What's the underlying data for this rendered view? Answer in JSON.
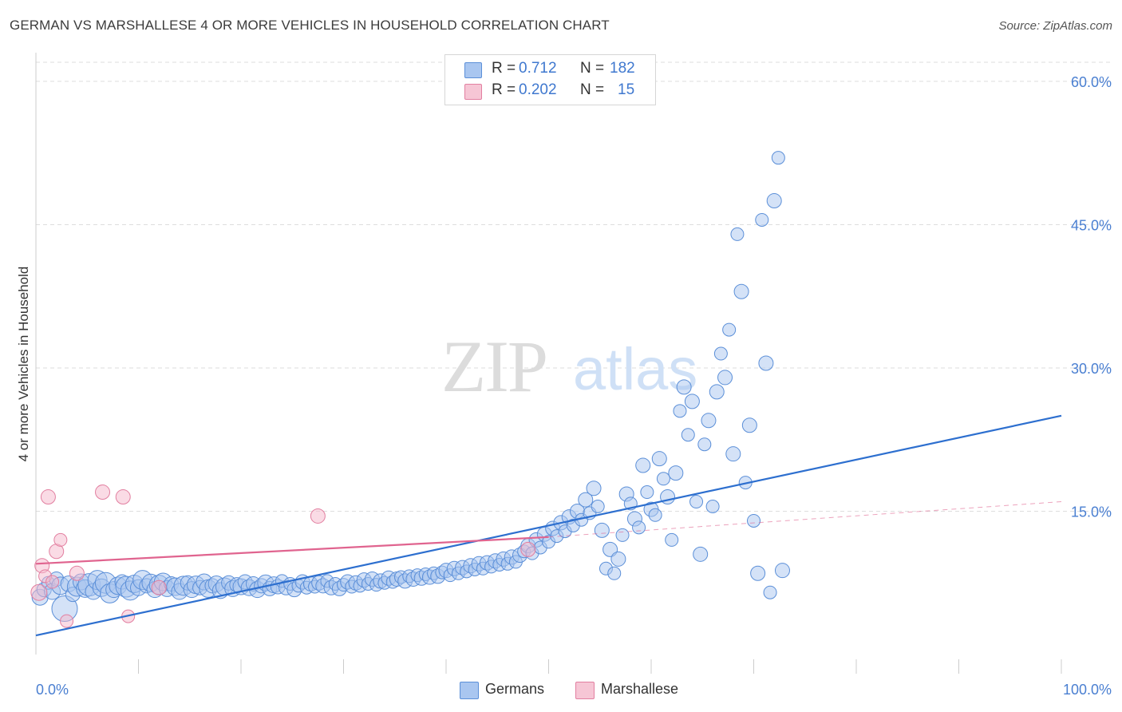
{
  "title": "GERMAN VS MARSHALLESE 4 OR MORE VEHICLES IN HOUSEHOLD CORRELATION CHART",
  "source": "Source: ZipAtlas.com",
  "watermark": {
    "zip": "ZIP",
    "atlas": "atlas"
  },
  "legend": {
    "german": {
      "r_label": "R =",
      "r_value": "0.712",
      "n_label": "N =",
      "n_value": "182"
    },
    "marshallese": {
      "r_label": "R =",
      "r_value": "0.202",
      "n_label": "N =",
      "n_value": "15"
    }
  },
  "bottom_legend": {
    "german": "Germans",
    "marshallese": "Marshallese"
  },
  "colors": {
    "german_fill": "#a9c6f0",
    "german_stroke": "#5b8fd8",
    "german_line": "#2d6fcf",
    "marsh_fill": "#f6b8cb",
    "marsh_stroke": "#e27fa0",
    "marsh_line": "#e0648f",
    "tick_text": "#4a7fd1",
    "grid": "#dddddd"
  },
  "chart_data": {
    "type": "scatter",
    "title": "GERMAN VS MARSHALLESE 4 OR MORE VEHICLES IN HOUSEHOLD CORRELATION CHART",
    "xlabel": "",
    "ylabel": "4 or more Vehicles in Household",
    "xlim": [
      0,
      100
    ],
    "ylim": [
      0,
      62
    ],
    "x_tick_labels": [
      "0.0%",
      "100.0%"
    ],
    "y_ticks": [
      15,
      30,
      45,
      60
    ],
    "y_tick_labels": [
      "15.0%",
      "30.0%",
      "45.0%",
      "60.0%"
    ],
    "grid": true,
    "legend_position": "top-center",
    "series": [
      {
        "name": "Germans",
        "trend": [
          [
            0,
            2.0
          ],
          [
            100,
            25.0
          ]
        ],
        "points": [
          [
            0.4,
            6.0,
            10
          ],
          [
            0.8,
            6.8,
            9
          ],
          [
            1.2,
            7.5,
            8
          ],
          [
            1.6,
            6.6,
            10
          ],
          [
            2.0,
            7.9,
            9
          ],
          [
            2.4,
            7.2,
            11
          ],
          [
            2.8,
            4.8,
            16
          ],
          [
            3.2,
            7.4,
            10
          ],
          [
            3.6,
            6.3,
            9
          ],
          [
            4.0,
            7.1,
            12
          ],
          [
            4.4,
            7.6,
            10
          ],
          [
            4.8,
            6.9,
            11
          ],
          [
            5.2,
            7.3,
            14
          ],
          [
            5.6,
            6.6,
            10
          ],
          [
            6.0,
            7.8,
            12
          ],
          [
            6.4,
            7.0,
            11
          ],
          [
            6.8,
            7.5,
            13
          ],
          [
            7.2,
            6.4,
            12
          ],
          [
            7.6,
            6.8,
            10
          ],
          [
            8.0,
            7.2,
            11
          ],
          [
            8.4,
            7.6,
            9
          ],
          [
            8.8,
            7.1,
            13
          ],
          [
            9.2,
            6.7,
            12
          ],
          [
            9.6,
            7.4,
            11
          ],
          [
            10.0,
            7.0,
            10
          ],
          [
            10.4,
            7.8,
            12
          ],
          [
            10.8,
            7.2,
            9
          ],
          [
            11.2,
            7.5,
            11
          ],
          [
            11.6,
            6.8,
            10
          ],
          [
            12.0,
            7.3,
            12
          ],
          [
            12.4,
            7.6,
            11
          ],
          [
            12.8,
            6.9,
            10
          ],
          [
            13.2,
            7.4,
            9
          ],
          [
            13.6,
            7.1,
            11
          ],
          [
            14.0,
            6.6,
            10
          ],
          [
            14.4,
            7.2,
            12
          ],
          [
            14.8,
            7.5,
            9
          ],
          [
            15.2,
            6.8,
            10
          ],
          [
            15.6,
            7.3,
            11
          ],
          [
            16.0,
            7.0,
            9
          ],
          [
            16.4,
            7.6,
            10
          ],
          [
            16.8,
            6.9,
            11
          ],
          [
            17.2,
            7.2,
            9
          ],
          [
            17.6,
            7.4,
            10
          ],
          [
            18.0,
            6.7,
            10
          ],
          [
            18.4,
            7.1,
            11
          ],
          [
            18.8,
            7.5,
            9
          ],
          [
            19.2,
            6.9,
            10
          ],
          [
            19.6,
            7.3,
            9
          ],
          [
            20.0,
            7.1,
            10
          ],
          [
            20.4,
            7.6,
            9
          ],
          [
            20.8,
            7.0,
            10
          ],
          [
            21.2,
            7.4,
            9
          ],
          [
            21.6,
            6.8,
            10
          ],
          [
            22.0,
            7.2,
            9
          ],
          [
            22.4,
            7.5,
            10
          ],
          [
            22.8,
            6.9,
            9
          ],
          [
            23.2,
            7.3,
            10
          ],
          [
            23.6,
            7.1,
            9
          ],
          [
            24.0,
            7.7,
            8
          ],
          [
            24.4,
            7.0,
            9
          ],
          [
            24.8,
            7.4,
            8
          ],
          [
            25.2,
            6.8,
            9
          ],
          [
            25.6,
            7.2,
            8
          ],
          [
            26.0,
            7.6,
            9
          ],
          [
            26.4,
            7.0,
            8
          ],
          [
            26.8,
            7.4,
            9
          ],
          [
            27.2,
            7.1,
            8
          ],
          [
            27.6,
            7.5,
            9
          ],
          [
            28.0,
            7.2,
            9
          ],
          [
            28.4,
            7.7,
            8
          ],
          [
            28.8,
            7.0,
            9
          ],
          [
            29.2,
            7.4,
            8
          ],
          [
            29.6,
            6.9,
            9
          ],
          [
            30.0,
            7.3,
            8
          ],
          [
            30.4,
            7.6,
            9
          ],
          [
            30.8,
            7.1,
            8
          ],
          [
            31.2,
            7.5,
            9
          ],
          [
            31.6,
            7.2,
            8
          ],
          [
            32.0,
            7.8,
            9
          ],
          [
            32.4,
            7.4,
            8
          ],
          [
            32.8,
            7.9,
            9
          ],
          [
            33.2,
            7.3,
            8
          ],
          [
            33.6,
            7.7,
            9
          ],
          [
            34.0,
            7.5,
            8
          ],
          [
            34.4,
            8.0,
            9
          ],
          [
            34.8,
            7.6,
            8
          ],
          [
            35.2,
            7.9,
            9
          ],
          [
            35.6,
            8.1,
            8
          ],
          [
            36.0,
            7.7,
            9
          ],
          [
            36.4,
            8.2,
            8
          ],
          [
            36.8,
            7.9,
            9
          ],
          [
            37.2,
            8.3,
            8
          ],
          [
            37.6,
            8.0,
            9
          ],
          [
            38.0,
            8.4,
            8
          ],
          [
            38.4,
            8.1,
            9
          ],
          [
            38.8,
            8.5,
            8
          ],
          [
            39.2,
            8.2,
            9
          ],
          [
            39.6,
            8.6,
            8
          ],
          [
            40.0,
            8.8,
            9
          ],
          [
            40.4,
            8.3,
            8
          ],
          [
            40.8,
            9.0,
            9
          ],
          [
            41.2,
            8.5,
            8
          ],
          [
            41.6,
            9.1,
            9
          ],
          [
            42.0,
            8.7,
            8
          ],
          [
            42.4,
            9.3,
            9
          ],
          [
            42.8,
            8.9,
            8
          ],
          [
            43.2,
            9.5,
            9
          ],
          [
            43.6,
            9.0,
            8
          ],
          [
            44.0,
            9.6,
            9
          ],
          [
            44.4,
            9.2,
            8
          ],
          [
            44.8,
            9.8,
            9
          ],
          [
            45.2,
            9.4,
            8
          ],
          [
            45.6,
            10.0,
            9
          ],
          [
            46.0,
            9.5,
            8
          ],
          [
            46.4,
            10.2,
            9
          ],
          [
            46.8,
            9.7,
            8
          ],
          [
            47.2,
            10.4,
            9
          ],
          [
            47.6,
            10.8,
            8
          ],
          [
            48.0,
            11.4,
            9
          ],
          [
            48.4,
            10.6,
            8
          ],
          [
            48.8,
            12.0,
            9
          ],
          [
            49.2,
            11.2,
            8
          ],
          [
            49.6,
            12.6,
            9
          ],
          [
            50.0,
            11.8,
            8
          ],
          [
            50.4,
            13.2,
            9
          ],
          [
            50.8,
            12.4,
            8
          ],
          [
            51.2,
            13.8,
            9
          ],
          [
            51.6,
            12.9,
            8
          ],
          [
            52.0,
            14.4,
            9
          ],
          [
            52.4,
            13.5,
            8
          ],
          [
            52.8,
            15.0,
            9
          ],
          [
            53.2,
            14.1,
            8
          ],
          [
            53.6,
            16.2,
            9
          ],
          [
            54.0,
            14.8,
            8
          ],
          [
            54.4,
            17.4,
            9
          ],
          [
            54.8,
            15.5,
            8
          ],
          [
            55.2,
            13.0,
            9
          ],
          [
            55.6,
            9.0,
            8
          ],
          [
            56.0,
            11.0,
            9
          ],
          [
            56.4,
            8.5,
            8
          ],
          [
            56.8,
            10.0,
            9
          ],
          [
            57.2,
            12.5,
            8
          ],
          [
            57.6,
            16.8,
            9
          ],
          [
            58.0,
            15.8,
            8
          ],
          [
            58.4,
            14.2,
            9
          ],
          [
            58.8,
            13.3,
            8
          ],
          [
            59.2,
            19.8,
            9
          ],
          [
            59.6,
            17.0,
            8
          ],
          [
            60.0,
            15.2,
            9
          ],
          [
            60.4,
            14.6,
            8
          ],
          [
            60.8,
            20.5,
            9
          ],
          [
            61.2,
            18.4,
            8
          ],
          [
            61.6,
            16.5,
            9
          ],
          [
            62.0,
            12.0,
            8
          ],
          [
            62.4,
            19.0,
            9
          ],
          [
            62.8,
            25.5,
            8
          ],
          [
            63.2,
            28.0,
            9
          ],
          [
            63.6,
            23.0,
            8
          ],
          [
            64.0,
            26.5,
            9
          ],
          [
            64.4,
            16.0,
            8
          ],
          [
            64.8,
            10.5,
            9
          ],
          [
            65.2,
            22.0,
            8
          ],
          [
            65.6,
            24.5,
            9
          ],
          [
            66.0,
            15.5,
            8
          ],
          [
            66.4,
            27.5,
            9
          ],
          [
            66.8,
            31.5,
            8
          ],
          [
            67.2,
            29.0,
            9
          ],
          [
            67.6,
            34.0,
            8
          ],
          [
            68.0,
            21.0,
            9
          ],
          [
            68.4,
            44.0,
            8
          ],
          [
            68.8,
            38.0,
            9
          ],
          [
            69.2,
            18.0,
            8
          ],
          [
            69.6,
            24.0,
            9
          ],
          [
            70.0,
            14.0,
            8
          ],
          [
            70.4,
            8.5,
            9
          ],
          [
            70.8,
            45.5,
            8
          ],
          [
            71.2,
            30.5,
            9
          ],
          [
            71.6,
            6.5,
            8
          ],
          [
            72.0,
            47.5,
            9
          ],
          [
            72.4,
            52.0,
            8
          ],
          [
            72.8,
            8.8,
            9
          ]
        ]
      },
      {
        "name": "Marshallese",
        "trend": [
          [
            0,
            9.5
          ],
          [
            50,
            12.3
          ]
        ],
        "trend_extension": [
          [
            50,
            12.3
          ],
          [
            100,
            16.0
          ]
        ],
        "points": [
          [
            0.3,
            6.5,
            10
          ],
          [
            0.6,
            9.3,
            9
          ],
          [
            0.9,
            8.2,
            8
          ],
          [
            1.2,
            16.5,
            9
          ],
          [
            1.6,
            7.6,
            8
          ],
          [
            2.0,
            10.8,
            9
          ],
          [
            2.4,
            12.0,
            8
          ],
          [
            3.0,
            3.5,
            8
          ],
          [
            4.0,
            8.5,
            9
          ],
          [
            6.5,
            17.0,
            9
          ],
          [
            8.5,
            16.5,
            9
          ],
          [
            9.0,
            4.0,
            8
          ],
          [
            12.0,
            7.0,
            9
          ],
          [
            27.5,
            14.5,
            9
          ],
          [
            48.0,
            11.0,
            9
          ]
        ]
      }
    ]
  }
}
